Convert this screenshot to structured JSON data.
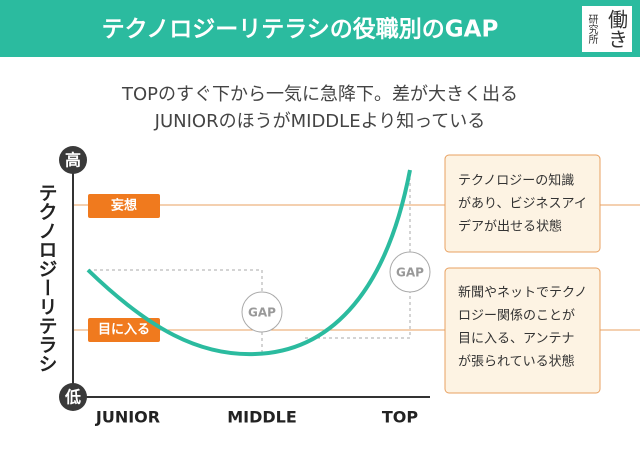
{
  "header": {
    "title": "テクノロジーリテラシの役職別のGAP",
    "logo": [
      "研究所",
      "働き"
    ]
  },
  "subtitle": [
    "TOPのすぐ下から一気に急降下。差が大きく出る",
    "JUNIORのほうがMIDDLEより知っている"
  ],
  "axis": {
    "y_label": "テクノロジーリテラシ",
    "high": "高",
    "low": "低",
    "x_labels": [
      "JUNIOR",
      "MIDDLE",
      "TOP"
    ]
  },
  "levels": [
    "妄想",
    "目に入る"
  ],
  "gaps": [
    "GAP",
    "GAP"
  ],
  "notes": [
    [
      "テクノロジーの知識",
      "があり、ビジネスアイ",
      "デアが出せる状態"
    ],
    [
      "新聞やネットでテクノ",
      "ロジー関係のことが",
      "目に入る、アンテナ",
      "が張られている状態"
    ]
  ]
}
